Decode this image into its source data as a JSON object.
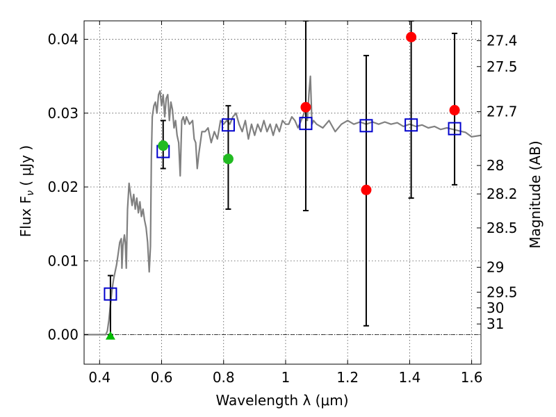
{
  "chart_data": {
    "type": "scatter",
    "xlabel": "Wavelength  λ (μm)",
    "ylabel": "Flux  F",
    "ylabel_sub": "ν",
    "ylabel_unit": " ( μJy )",
    "y2label": "Magnitude (AB)",
    "xlim": [
      0.35,
      1.63
    ],
    "ylim": [
      -0.004,
      0.0425
    ],
    "x_ticks": [
      {
        "value": 0.4,
        "label": "0.4"
      },
      {
        "value": 0.6,
        "label": "0.6"
      },
      {
        "value": 0.8,
        "label": "0.8"
      },
      {
        "value": 1.0,
        "label": "1"
      },
      {
        "value": 1.2,
        "label": "1.2"
      },
      {
        "value": 1.4,
        "label": "1.4"
      },
      {
        "value": 1.6,
        "label": "1.6"
      }
    ],
    "y_ticks": [
      {
        "value": 0.0,
        "label": "0.00"
      },
      {
        "value": 0.01,
        "label": "0.01"
      },
      {
        "value": 0.02,
        "label": "0.02"
      },
      {
        "value": 0.03,
        "label": "0.03"
      },
      {
        "value": 0.04,
        "label": "0.04"
      }
    ],
    "y2_ticks": [
      {
        "value": 27.4,
        "label": "27.4"
      },
      {
        "value": 27.5,
        "label": "27.5"
      },
      {
        "value": 27.7,
        "label": "27.7"
      },
      {
        "value": 28.0,
        "label": "28"
      },
      {
        "value": 28.2,
        "label": "28.2"
      },
      {
        "value": 28.5,
        "label": "28.5"
      },
      {
        "value": 29.0,
        "label": "29"
      },
      {
        "value": 29.5,
        "label": "29.5"
      },
      {
        "value": 30.0,
        "label": "30"
      },
      {
        "value": 31.0,
        "label": "31"
      }
    ],
    "grid": true,
    "zero_line": true,
    "model_spectrum": {
      "color": "#808080",
      "points": [
        [
          0.35,
          0.0
        ],
        [
          0.42,
          0.0
        ],
        [
          0.425,
          0.0005
        ],
        [
          0.43,
          0.002
        ],
        [
          0.435,
          0.004
        ],
        [
          0.44,
          0.006
        ],
        [
          0.445,
          0.0075
        ],
        [
          0.45,
          0.0085
        ],
        [
          0.455,
          0.0095
        ],
        [
          0.46,
          0.011
        ],
        [
          0.465,
          0.0125
        ],
        [
          0.47,
          0.013
        ],
        [
          0.472,
          0.009
        ],
        [
          0.475,
          0.012
        ],
        [
          0.48,
          0.0135
        ],
        [
          0.483,
          0.0125
        ],
        [
          0.486,
          0.009
        ],
        [
          0.49,
          0.017
        ],
        [
          0.495,
          0.0205
        ],
        [
          0.5,
          0.019
        ],
        [
          0.505,
          0.0175
        ],
        [
          0.51,
          0.019
        ],
        [
          0.515,
          0.017
        ],
        [
          0.52,
          0.0185
        ],
        [
          0.525,
          0.0165
        ],
        [
          0.53,
          0.018
        ],
        [
          0.535,
          0.016
        ],
        [
          0.54,
          0.017
        ],
        [
          0.545,
          0.0155
        ],
        [
          0.55,
          0.0145
        ],
        [
          0.555,
          0.0125
        ],
        [
          0.56,
          0.0085
        ],
        [
          0.564,
          0.012
        ],
        [
          0.567,
          0.024
        ],
        [
          0.57,
          0.0295
        ],
        [
          0.575,
          0.031
        ],
        [
          0.58,
          0.0315
        ],
        [
          0.585,
          0.03
        ],
        [
          0.59,
          0.0325
        ],
        [
          0.595,
          0.033
        ],
        [
          0.6,
          0.031
        ],
        [
          0.605,
          0.0325
        ],
        [
          0.61,
          0.0295
        ],
        [
          0.615,
          0.032
        ],
        [
          0.62,
          0.0325
        ],
        [
          0.625,
          0.029
        ],
        [
          0.63,
          0.0315
        ],
        [
          0.635,
          0.0305
        ],
        [
          0.64,
          0.028
        ],
        [
          0.645,
          0.029
        ],
        [
          0.65,
          0.027
        ],
        [
          0.655,
          0.026
        ],
        [
          0.66,
          0.0215
        ],
        [
          0.665,
          0.029
        ],
        [
          0.67,
          0.0295
        ],
        [
          0.675,
          0.0285
        ],
        [
          0.68,
          0.0295
        ],
        [
          0.69,
          0.0285
        ],
        [
          0.7,
          0.029
        ],
        [
          0.705,
          0.0265
        ],
        [
          0.71,
          0.026
        ],
        [
          0.715,
          0.0225
        ],
        [
          0.72,
          0.0245
        ],
        [
          0.73,
          0.0275
        ],
        [
          0.74,
          0.0275
        ],
        [
          0.75,
          0.028
        ],
        [
          0.76,
          0.026
        ],
        [
          0.77,
          0.0275
        ],
        [
          0.78,
          0.0265
        ],
        [
          0.79,
          0.029
        ],
        [
          0.8,
          0.0285
        ],
        [
          0.81,
          0.029
        ],
        [
          0.82,
          0.0285
        ],
        [
          0.83,
          0.0295
        ],
        [
          0.84,
          0.03
        ],
        [
          0.85,
          0.0285
        ],
        [
          0.86,
          0.0275
        ],
        [
          0.87,
          0.029
        ],
        [
          0.88,
          0.0265
        ],
        [
          0.89,
          0.0285
        ],
        [
          0.9,
          0.027
        ],
        [
          0.91,
          0.0285
        ],
        [
          0.92,
          0.0275
        ],
        [
          0.93,
          0.029
        ],
        [
          0.94,
          0.0275
        ],
        [
          0.95,
          0.0285
        ],
        [
          0.96,
          0.027
        ],
        [
          0.97,
          0.0285
        ],
        [
          0.98,
          0.0275
        ],
        [
          0.99,
          0.029
        ],
        [
          1.0,
          0.0285
        ],
        [
          1.01,
          0.0285
        ],
        [
          1.02,
          0.0295
        ],
        [
          1.03,
          0.029
        ],
        [
          1.04,
          0.028
        ],
        [
          1.05,
          0.029
        ],
        [
          1.06,
          0.03
        ],
        [
          1.065,
          0.0315
        ],
        [
          1.07,
          0.029
        ],
        [
          1.075,
          0.0325
        ],
        [
          1.08,
          0.035
        ],
        [
          1.085,
          0.0285
        ],
        [
          1.09,
          0.029
        ],
        [
          1.1,
          0.0285
        ],
        [
          1.12,
          0.028
        ],
        [
          1.14,
          0.029
        ],
        [
          1.16,
          0.0275
        ],
        [
          1.18,
          0.0285
        ],
        [
          1.2,
          0.029
        ],
        [
          1.22,
          0.0285
        ],
        [
          1.24,
          0.0288
        ],
        [
          1.26,
          0.0285
        ],
        [
          1.28,
          0.0288
        ],
        [
          1.3,
          0.0285
        ],
        [
          1.32,
          0.0288
        ],
        [
          1.34,
          0.0285
        ],
        [
          1.36,
          0.0287
        ],
        [
          1.38,
          0.0282
        ],
        [
          1.4,
          0.0285
        ],
        [
          1.42,
          0.0282
        ],
        [
          1.44,
          0.0284
        ],
        [
          1.46,
          0.028
        ],
        [
          1.48,
          0.0282
        ],
        [
          1.5,
          0.0278
        ],
        [
          1.52,
          0.028
        ],
        [
          1.54,
          0.0278
        ],
        [
          1.56,
          0.0276
        ],
        [
          1.58,
          0.0274
        ],
        [
          1.6,
          0.0268
        ],
        [
          1.63,
          0.027
        ]
      ]
    },
    "errorbars": [
      {
        "x": 0.435,
        "ylow": 0.0,
        "yhigh": 0.008
      },
      {
        "x": 0.605,
        "ylow": 0.0225,
        "yhigh": 0.029
      },
      {
        "x": 0.815,
        "ylow": 0.017,
        "yhigh": 0.031
      },
      {
        "x": 1.065,
        "ylow": 0.0168,
        "yhigh": 0.0425
      },
      {
        "x": 1.26,
        "ylow": 0.0012,
        "yhigh": 0.0378
      },
      {
        "x": 1.405,
        "ylow": 0.0185,
        "yhigh": 0.0425
      },
      {
        "x": 1.545,
        "ylow": 0.0203,
        "yhigh": 0.0408
      }
    ],
    "series": [
      {
        "marker": "square-open",
        "color": "#0000cc",
        "points": [
          [
            0.435,
            0.0055
          ],
          [
            0.605,
            0.0248
          ],
          [
            0.815,
            0.0284
          ],
          [
            1.065,
            0.0286
          ],
          [
            1.26,
            0.0283
          ],
          [
            1.405,
            0.0284
          ],
          [
            1.545,
            0.0279
          ]
        ]
      },
      {
        "marker": "circle-filled",
        "color": "#ff0000",
        "points": [
          [
            1.065,
            0.0308
          ],
          [
            1.26,
            0.0196
          ],
          [
            1.405,
            0.0403
          ],
          [
            1.545,
            0.0304
          ]
        ]
      },
      {
        "marker": "circle-filled",
        "color": "#22bb22",
        "points": [
          [
            0.605,
            0.0256
          ],
          [
            0.815,
            0.0238
          ]
        ]
      },
      {
        "marker": "triangle-filled",
        "color": "#00bb00",
        "points": [
          [
            0.435,
            -0.0002
          ]
        ]
      }
    ]
  }
}
